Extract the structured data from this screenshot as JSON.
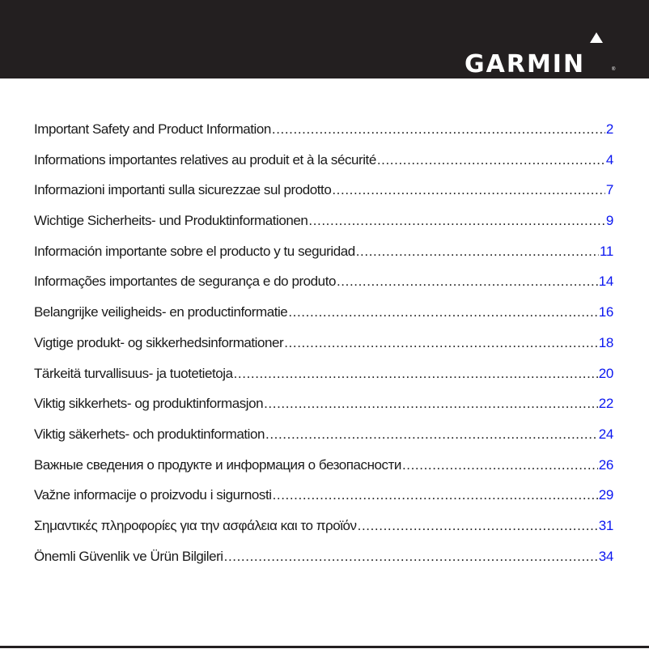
{
  "header": {
    "brand": "GARMIN",
    "registered_mark": "®"
  },
  "colors": {
    "header_bg": "#231f20",
    "page_number": "#0b17f0"
  },
  "toc": [
    {
      "title": "Important Safety and Product Information",
      "page": "2"
    },
    {
      "title": "Informations importantes relatives au produit et à la sécurité",
      "page": "4"
    },
    {
      "title": "Informazioni importanti sulla sicurezzae sul prodotto",
      "page": "7"
    },
    {
      "title": "Wichtige Sicherheits- und Produktinformationen",
      "page": "9"
    },
    {
      "title": "Información importante sobre el producto y tu seguridad",
      "page": "11"
    },
    {
      "title": "Informações importantes de segurança e do produto",
      "page": "14"
    },
    {
      "title": "Belangrijke veiligheids- en productinformatie",
      "page": "16"
    },
    {
      "title": "Vigtige produkt- og sikkerhedsinformationer",
      "page": "18"
    },
    {
      "title": "Tärkeitä turvallisuus- ja tuotetietoja",
      "page": "20"
    },
    {
      "title": "Viktig sikkerhets- og produktinformasjon",
      "page": "22"
    },
    {
      "title": "Viktig säkerhets- och produktinformation",
      "page": "24"
    },
    {
      "title": "Важные сведения о продукте и информация о безопасности",
      "page": "26"
    },
    {
      "title": "Važne informacije o proizvodu i sigurnosti",
      "page": "29"
    },
    {
      "title": "Σημαντικές πληροφορίες για την ασφάλεια και το προϊόν",
      "page": "31"
    },
    {
      "title": "Önemli Güvenlik ve Ürün Bilgileri",
      "page": "34"
    }
  ]
}
